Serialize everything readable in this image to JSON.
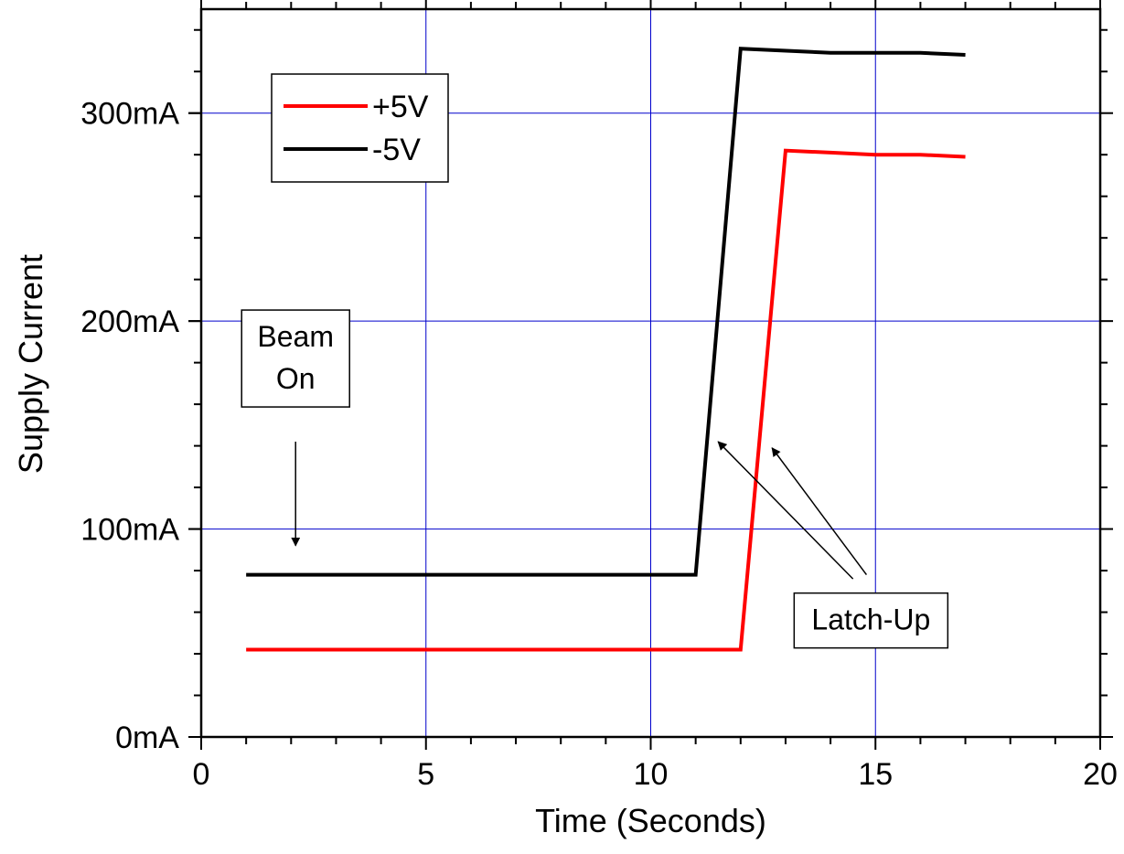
{
  "chart_data": {
    "type": "line",
    "title": "",
    "xlabel": "Time (Seconds)",
    "ylabel": "Supply Current",
    "xlim": [
      0,
      20
    ],
    "ylim": [
      0,
      350
    ],
    "grid": true,
    "grid_color": "#0000cc",
    "x_major_ticks": [
      0,
      5,
      10,
      15,
      20
    ],
    "x_tick_labels": [
      "0",
      "5",
      "10",
      "15",
      "20"
    ],
    "y_major_ticks": [
      0,
      100,
      200,
      300
    ],
    "y_tick_labels": [
      "0mA",
      "100mA",
      "200mA",
      "300mA"
    ],
    "legend_position": "top-left",
    "series": [
      {
        "name": "+5V",
        "color": "#ff0000",
        "x": [
          1,
          12,
          13,
          14,
          15,
          16,
          17
        ],
        "y": [
          42,
          42,
          282,
          281,
          280,
          280,
          279
        ]
      },
      {
        "name": "-5V",
        "color": "#000000",
        "x": [
          1,
          11,
          12,
          14,
          15,
          16,
          17
        ],
        "y": [
          78,
          78,
          331,
          329,
          329,
          329,
          328
        ]
      }
    ],
    "annotations": [
      {
        "label_lines": [
          "Beam",
          "On"
        ],
        "box_anchor": [
          2.1,
          182
        ],
        "arrows": [
          {
            "from": [
              2.1,
              142
            ],
            "to": [
              2.1,
              92
            ]
          }
        ]
      },
      {
        "label_lines": [
          "Latch-Up"
        ],
        "box_anchor": [
          14.9,
          56
        ],
        "arrows": [
          {
            "from": [
              14.5,
              76
            ],
            "to": [
              11.5,
              142
            ]
          },
          {
            "from": [
              14.8,
              78
            ],
            "to": [
              12.7,
              139
            ]
          }
        ]
      }
    ]
  }
}
